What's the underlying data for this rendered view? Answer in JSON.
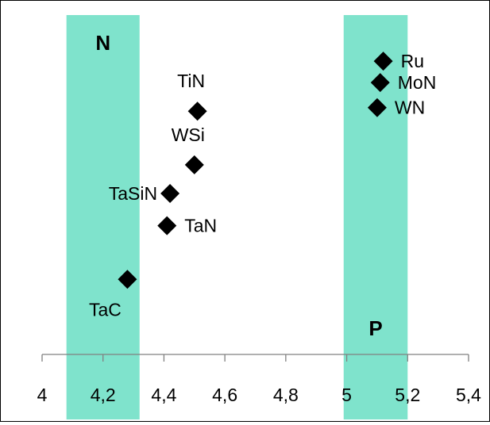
{
  "chart_data": {
    "type": "scatter",
    "title": "",
    "xlabel": "",
    "ylabel": "",
    "xlim": [
      4.0,
      5.4
    ],
    "ylim": [
      0,
      9
    ],
    "x_ticks": [
      "4",
      "4,2",
      "4,4",
      "4,6",
      "4,8",
      "5",
      "5,2",
      "5,4"
    ],
    "y_axis_visible": false,
    "grid": false,
    "legend": "none",
    "marker": "diamond",
    "marker_color": "#000000",
    "bands": [
      {
        "label": "N",
        "x_from": 4.08,
        "x_to": 4.32,
        "color": "#7fe3cc"
      },
      {
        "label": "P",
        "x_from": 4.99,
        "x_to": 5.2,
        "color": "#7fe3cc"
      }
    ],
    "points": [
      {
        "label": "Ru",
        "x": 5.12,
        "y": 8.2,
        "label_pos": "right"
      },
      {
        "label": "MoN",
        "x": 5.11,
        "y": 7.6,
        "label_pos": "right"
      },
      {
        "label": "WN",
        "x": 5.1,
        "y": 6.9,
        "label_pos": "right"
      },
      {
        "label": "TiN",
        "x": 4.51,
        "y": 6.8,
        "label_pos": "above"
      },
      {
        "label": "WSi",
        "x": 4.5,
        "y": 5.3,
        "label_pos": "above"
      },
      {
        "label": "TaSiN",
        "x": 4.42,
        "y": 4.5,
        "label_pos": "left"
      },
      {
        "label": "TaN",
        "x": 4.41,
        "y": 3.6,
        "label_pos": "right"
      },
      {
        "label": "TaC",
        "x": 4.28,
        "y": 2.1,
        "label_pos": "below"
      }
    ]
  }
}
